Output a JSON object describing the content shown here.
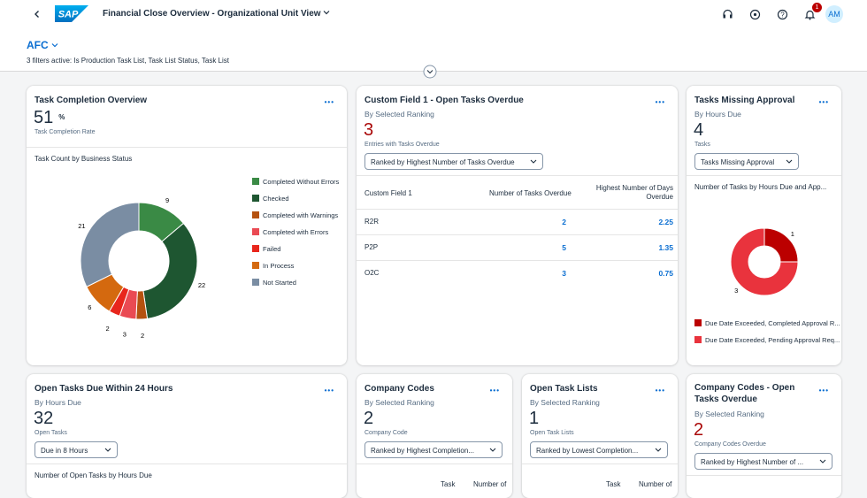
{
  "header": {
    "logo": "SAP",
    "title": "Financial Close Overview - Organizational Unit View",
    "notification_count": 1,
    "avatar": "AM"
  },
  "filter_bar": {
    "variant": "AFC",
    "summary": "3 filters active: Is Production Task List, Task List Status, Task List"
  },
  "cards": [
    {
      "title": "Task Completion Overview",
      "kpi": {
        "value": 51,
        "unit": "%",
        "label": "Task Completion Rate"
      },
      "chart_title": "Task Count by Business Status",
      "chart_data": {
        "type": "donut",
        "categories": [
          "Completed Without Errors",
          "Checked",
          "Completed with Warnings",
          "Completed with Errors",
          "Failed",
          "In Process",
          "Not Started"
        ],
        "values": [
          9,
          22,
          2,
          3,
          2,
          6,
          21
        ],
        "colors": [
          "#3a8a45",
          "#1e5631",
          "#b5520f",
          "#ea4a53",
          "#e8261c",
          "#d4690f",
          "#7a8da3"
        ]
      }
    },
    {
      "title": "Custom Field 1 - Open Tasks Overdue",
      "subtitle": "By Selected Ranking",
      "kpi": {
        "value": 3,
        "label": "Entries with Tasks Overdue"
      },
      "dropdown": "Ranked by Highest Number of Tasks Overdue",
      "table": {
        "columns": [
          "Custom Field 1",
          "Number of Tasks Overdue",
          "Highest Number of Days Overdue"
        ],
        "rows": [
          [
            "R2R",
            2,
            2.25
          ],
          [
            "P2P",
            5,
            1.35
          ],
          [
            "O2C",
            3,
            0.75
          ]
        ]
      }
    },
    {
      "title": "Tasks Missing Approval",
      "subtitle": "By Hours Due",
      "kpi": {
        "value": 4,
        "label": "Tasks"
      },
      "dropdown": "Tasks Missing Approval",
      "chart_title": "Number of Tasks by Hours Due and App...",
      "chart_data": {
        "type": "donut",
        "categories": [
          "Due Date Exceeded, Completed Approval R...",
          "Due Date Exceeded, Pending Approval Req..."
        ],
        "values": [
          1,
          3
        ],
        "colors": [
          "#bb0000",
          "#e9333d"
        ]
      }
    },
    {
      "title": "Open Tasks Due Within 24 Hours",
      "subtitle": "By Hours Due",
      "kpi": {
        "value": 32,
        "label": "Open Tasks"
      },
      "dropdown": "Due in 8 Hours",
      "chart_title": "Number of Open Tasks by Hours Due"
    },
    {
      "title": "Company Codes",
      "subtitle": "By Selected Ranking",
      "kpi": {
        "value": 2,
        "label": "Company Code"
      },
      "dropdown": "Ranked by Highest Completion...",
      "table": {
        "columns": [
          "Task",
          "Number of"
        ]
      }
    },
    {
      "title": "Open Task Lists",
      "subtitle": "By Selected Ranking",
      "kpi": {
        "value": 1,
        "label": "Open Task Lists"
      },
      "dropdown": "Ranked by Lowest Completion...",
      "table": {
        "columns": [
          "Task",
          "Number of"
        ]
      }
    },
    {
      "title": "Company Codes - Open Tasks Overdue",
      "subtitle": "By Selected Ranking",
      "kpi": {
        "value": 2,
        "label": "Company Codes Overdue"
      },
      "dropdown": "Ranked by Highest Number of ..."
    }
  ]
}
